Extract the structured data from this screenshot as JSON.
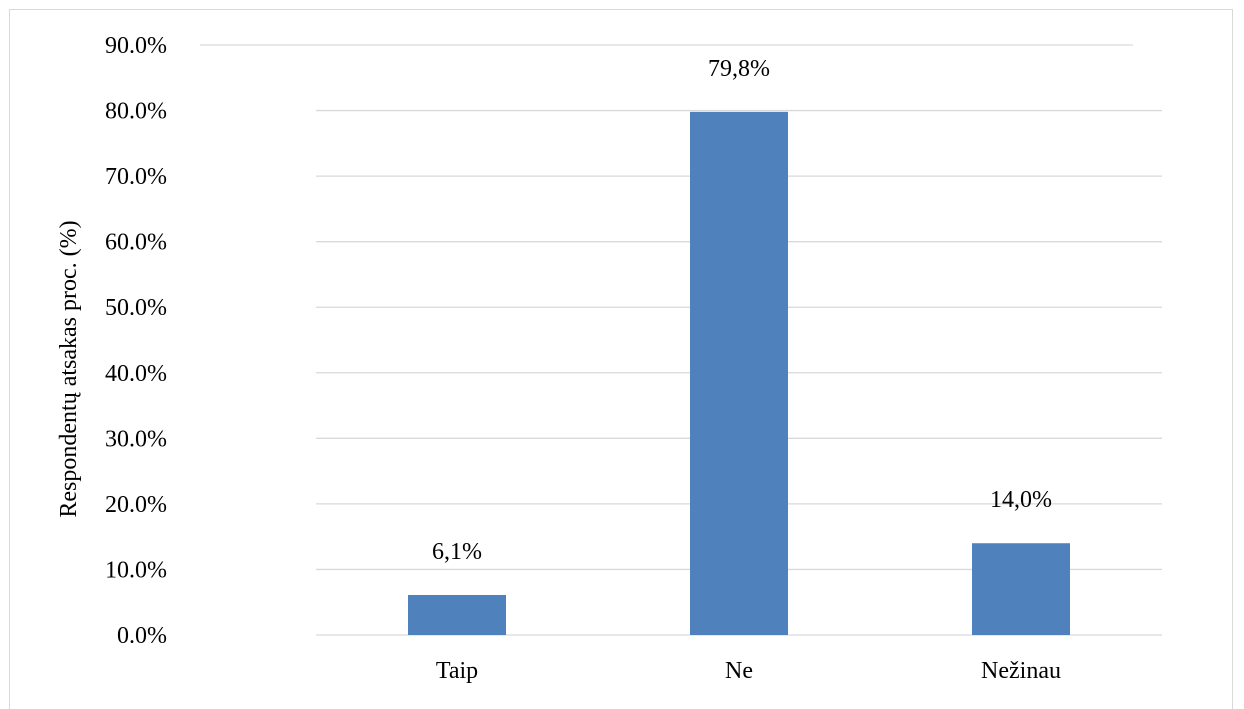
{
  "chart_data": {
    "type": "bar",
    "categories": [
      "Taip",
      "Ne",
      "Nežinau"
    ],
    "values": [
      6.1,
      79.8,
      14.0
    ],
    "data_labels": [
      "6,1%",
      "79,8%",
      "14,0%"
    ],
    "title": "",
    "xlabel": "",
    "ylabel": "Respondentų atsakas proc. (%)",
    "ylim": [
      0,
      90
    ],
    "yticks": [
      0,
      10,
      20,
      30,
      40,
      50,
      60,
      70,
      80,
      90
    ],
    "ytick_labels": [
      "0.0%",
      "10.0%",
      "20.0%",
      "30.0%",
      "40.0%",
      "50.0%",
      "60.0%",
      "70.0%",
      "80.0%",
      "90.0%"
    ],
    "grid": true,
    "legend": "none",
    "bar_color": "#4f81bd",
    "grid_color": "#d9d9d9"
  }
}
